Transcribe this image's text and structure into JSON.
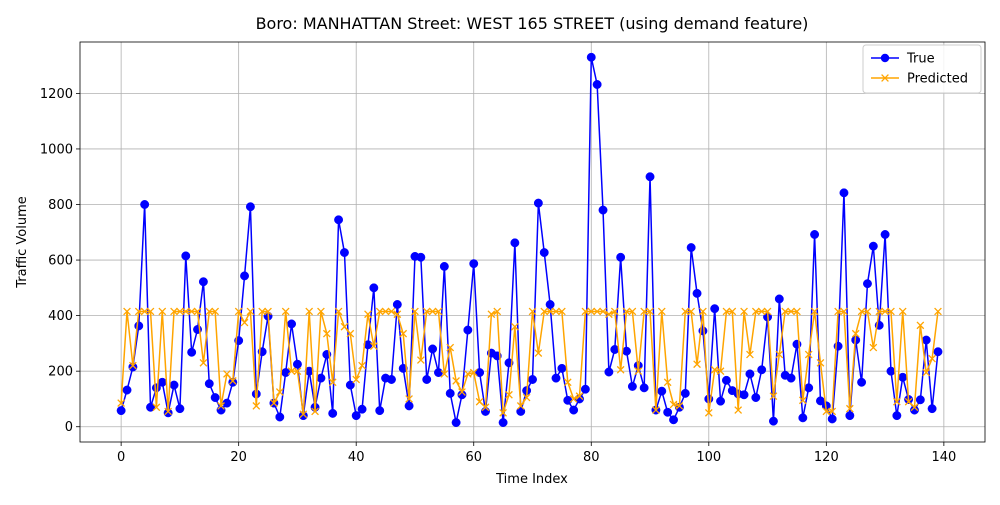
{
  "chart_data": {
    "type": "line",
    "title": "Boro: MANHATTAN Street: WEST 165 STREET (using demand feature)",
    "xlabel": "Time Index",
    "ylabel": "Traffic Volume",
    "xlim": [
      -7,
      147
    ],
    "ylim": [
      -55,
      1385
    ],
    "xticks": [
      0,
      20,
      40,
      60,
      80,
      100,
      120,
      140
    ],
    "yticks": [
      0,
      200,
      400,
      600,
      800,
      1000,
      1200
    ],
    "grid": true,
    "legend_position": "top-right",
    "series": [
      {
        "name": "True",
        "color": "#0000ff",
        "marker": "circle",
        "values": [
          58,
          132,
          215,
          363,
          800,
          70,
          140,
          160,
          50,
          150,
          65,
          615,
          268,
          350,
          522,
          155,
          105,
          60,
          85,
          160,
          310,
          543,
          792,
          118,
          270,
          398,
          85,
          35,
          195,
          370,
          225,
          40,
          200,
          70,
          175,
          260,
          48,
          745,
          627,
          150,
          40,
          63,
          295,
          500,
          58,
          175,
          170,
          440,
          210,
          75,
          613,
          610,
          170,
          280,
          195,
          577,
          120,
          15,
          115,
          348,
          587,
          195,
          55,
          265,
          255,
          15,
          230,
          662,
          55,
          130,
          170,
          805,
          627,
          440,
          175,
          210,
          95,
          60,
          100,
          135,
          1330,
          1232,
          780,
          197,
          278,
          610,
          272,
          145,
          220,
          140,
          900,
          60,
          128,
          52,
          25,
          70,
          120,
          645,
          480,
          345,
          100,
          425,
          92,
          167,
          130,
          118,
          115,
          190,
          105,
          205,
          395,
          20,
          460,
          185,
          175,
          297,
          32,
          140,
          692,
          93,
          75,
          28,
          290,
          842,
          40,
          312,
          160,
          515,
          650,
          365,
          692,
          200,
          40,
          178,
          98,
          60,
          97,
          312,
          65,
          270
        ]
      },
      {
        "name": "Predicted",
        "color": "#ffa500",
        "marker": "x",
        "values": [
          85,
          415,
          220,
          415,
          415,
          415,
          70,
          415,
          55,
          415,
          415,
          415,
          415,
          415,
          230,
          415,
          415,
          75,
          190,
          165,
          415,
          375,
          415,
          75,
          415,
          415,
          85,
          125,
          415,
          200,
          200,
          45,
          415,
          55,
          415,
          335,
          160,
          415,
          360,
          335,
          170,
          220,
          405,
          290,
          415,
          415,
          415,
          405,
          335,
          100,
          415,
          240,
          415,
          415,
          415,
          190,
          285,
          165,
          125,
          190,
          195,
          90,
          70,
          405,
          415,
          50,
          115,
          360,
          75,
          105,
          415,
          265,
          415,
          415,
          415,
          415,
          160,
          100,
          110,
          415,
          415,
          415,
          415,
          405,
          415,
          205,
          415,
          415,
          200,
          415,
          415,
          60,
          415,
          160,
          80,
          75,
          415,
          415,
          225,
          415,
          50,
          205,
          200,
          415,
          415,
          60,
          415,
          260,
          415,
          415,
          415,
          110,
          260,
          415,
          415,
          415,
          95,
          260,
          415,
          230,
          55,
          55,
          415,
          415,
          65,
          335,
          415,
          415,
          285,
          415,
          415,
          415,
          90,
          415,
          90,
          70,
          365,
          195,
          245,
          415
        ]
      }
    ]
  }
}
